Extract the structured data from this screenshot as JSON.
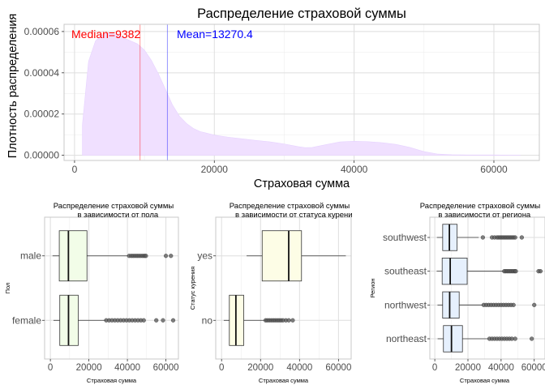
{
  "chart_data": [
    {
      "type": "area",
      "title": "Распределение страховой суммы",
      "xlabel": "Страховая сумма",
      "ylabel": "Плотность распределения",
      "xlim": [
        -1500,
        66500
      ],
      "ylim": [
        -2.5e-06,
        6.35e-05
      ],
      "x_ticks": [
        0,
        20000,
        40000,
        60000
      ],
      "x_tick_labels": [
        "0",
        "20000",
        "40000",
        "60000"
      ],
      "y_ticks": [
        0,
        2e-05,
        4e-05,
        6e-05
      ],
      "y_tick_labels": [
        "0.00000",
        "0.00002",
        "0.00004",
        "0.00006"
      ],
      "grid": true,
      "fill_color": "#f0e0ff",
      "x": [
        1122,
        2000,
        3000,
        4000,
        5000,
        6000,
        7000,
        8000,
        9000,
        10000,
        11000,
        12000,
        13000,
        14000,
        15000,
        16000,
        17000,
        18000,
        20000,
        22000,
        24000,
        26000,
        28000,
        30000,
        32000,
        33000,
        34000,
        36000,
        38000,
        40000,
        42000,
        44000,
        46000,
        48000,
        50000,
        52000,
        54000,
        56000,
        58000,
        60000,
        62000,
        63770
      ],
      "y": [
        1.48e-05,
        4.55e-05,
        5.55e-05,
        5.85e-05,
        5.95e-05,
        5.85e-05,
        5.7e-05,
        5.55e-05,
        5.4e-05,
        5.1e-05,
        4.6e-05,
        3.95e-05,
        3.2e-05,
        2.45e-05,
        1.9e-05,
        1.55e-05,
        1.3e-05,
        1.15e-05,
        9.8e-06,
        8.8e-06,
        8e-06,
        7.2e-06,
        6.5e-06,
        5.5e-06,
        4.2e-06,
        3.7e-06,
        3.8e-06,
        5.2e-06,
        6.5e-06,
        6.8e-06,
        6.6e-06,
        6.1e-06,
        5.3e-06,
        3.8e-06,
        1.8e-06,
        6e-07,
        3e-07,
        2e-07,
        2e-07,
        2e-07,
        1e-07,
        1e-07
      ],
      "annotations": [
        {
          "label": "Median=9382",
          "x": 9382,
          "color": "#ff0000"
        },
        {
          "label": "Mean=13270.4",
          "x": 13270.4,
          "color": "#0000ff"
        }
      ]
    },
    {
      "type": "boxplot",
      "title": "Распределение страховой суммы\n в зависимости от пола",
      "xlabel": "Страховая сумма",
      "ylabel": "Пол",
      "xlim": [
        -3000,
        66500
      ],
      "x_ticks": [
        0,
        20000,
        40000,
        60000
      ],
      "x_tick_labels": [
        "0",
        "20000",
        "40000",
        "60000"
      ],
      "fill_color": "#f2fde8",
      "categories": [
        "female",
        "male"
      ],
      "boxes": [
        {
          "category": "female",
          "min": 1608,
          "q1": 4885,
          "median": 9413,
          "q3": 14454,
          "whisker_end": 28800,
          "outliers": [
            29000,
            30500,
            32000,
            33500,
            35000,
            36500,
            38000,
            39500,
            41000,
            42500,
            44000,
            45500,
            47000,
            48500,
            55000,
            58500,
            63770
          ]
        },
        {
          "category": "male",
          "min": 1122,
          "q1": 4619,
          "median": 9370,
          "q3": 19006,
          "whisker_end": 40500,
          "outliers": [
            40900,
            42000,
            43000,
            44000,
            45000,
            46000,
            47000,
            48000,
            48900,
            49600,
            60000,
            62600
          ]
        }
      ]
    },
    {
      "type": "boxplot",
      "title": "Распределение страховой суммы\n в зависимости от статуса курени",
      "xlabel": "Страховая сумма",
      "ylabel": "Статус курения",
      "xlim": [
        -3000,
        66500
      ],
      "x_ticks": [
        0,
        20000,
        40000,
        60000
      ],
      "x_tick_labels": [
        "0",
        "20000",
        "40000",
        "60000"
      ],
      "fill_color": "#fdfde6",
      "categories": [
        "no",
        "yes"
      ],
      "boxes": [
        {
          "category": "no",
          "min": 1122,
          "q1": 3987,
          "median": 7345,
          "q3": 11363,
          "whisker_end": 22400,
          "outliers": [
            22600,
            23500,
            24500,
            25500,
            26500,
            27500,
            28500,
            29500,
            30500,
            31500,
            33000,
            34500,
            36500
          ]
        },
        {
          "category": "yes",
          "min": 12829,
          "q1": 20826,
          "median": 34456,
          "q3": 41019,
          "whisker_end": 63770,
          "outliers": []
        }
      ]
    },
    {
      "type": "boxplot",
      "title": "Распределение страховой суммы\n в зависимости от региона",
      "xlabel": "Страховая сумма",
      "ylabel": "Регион",
      "xlim": [
        -3000,
        66500
      ],
      "x_ticks": [
        0,
        20000,
        40000,
        60000
      ],
      "x_tick_labels": [
        "0",
        "20000",
        "40000",
        "60000"
      ],
      "fill_color": "#e6f0fd",
      "categories": [
        "northeast",
        "northwest",
        "southeast",
        "southwest"
      ],
      "boxes": [
        {
          "category": "northeast",
          "min": 1695,
          "q1": 5194,
          "median": 10058,
          "q3": 16687,
          "whisker_end": 32400,
          "outliers": [
            33000,
            34500,
            36000,
            37500,
            39000,
            40500,
            42000,
            43500,
            45000,
            46500,
            48500,
            58500
          ]
        },
        {
          "category": "northwest",
          "min": 1621,
          "q1": 4720,
          "median": 8966,
          "q3": 14712,
          "whisker_end": 29000,
          "outliers": [
            29500,
            31000,
            32500,
            34000,
            35500,
            37000,
            38500,
            40000,
            41500,
            43000,
            44500,
            46000,
            47500,
            60000
          ]
        },
        {
          "category": "southeast",
          "min": 1122,
          "q1": 4441,
          "median": 9294,
          "q3": 19526,
          "whisker_end": 41500,
          "outliers": [
            41900,
            42800,
            43700,
            44600,
            45500,
            46400,
            47300,
            48200,
            48900,
            62600,
            63770
          ]
        },
        {
          "category": "southwest",
          "min": 1241,
          "q1": 4751,
          "median": 8799,
          "q3": 13463,
          "whisker_end": 26500,
          "outliers": [
            29000,
            34500,
            36000,
            37500,
            38500,
            39500,
            40500,
            41500,
            42500,
            43500,
            44500,
            45500,
            46500,
            47500,
            48500,
            52500
          ]
        }
      ]
    }
  ]
}
